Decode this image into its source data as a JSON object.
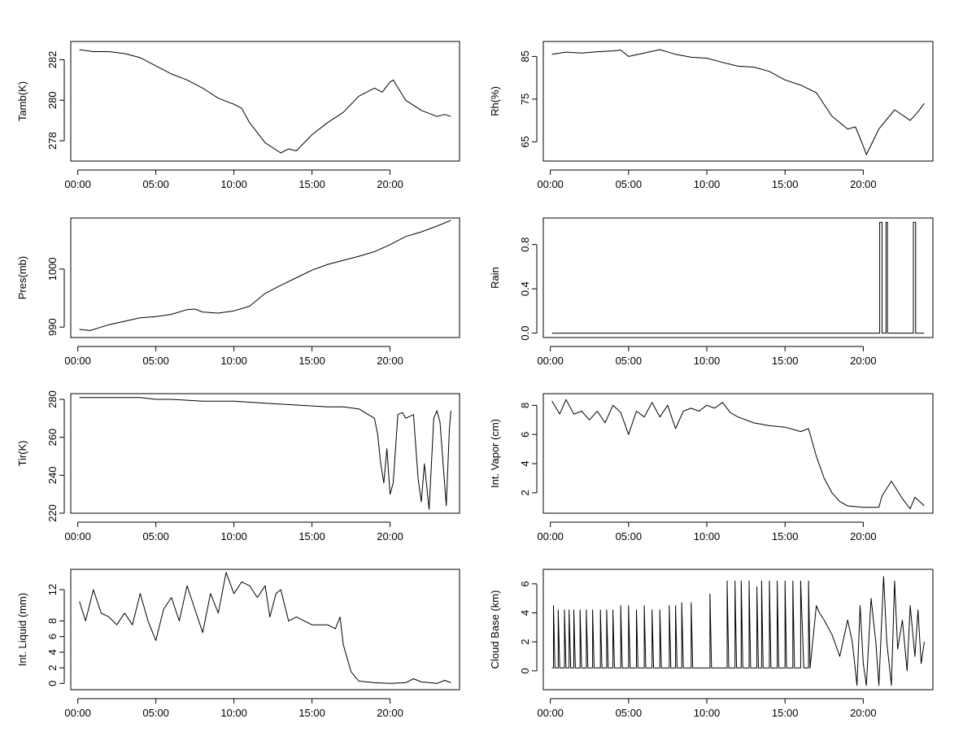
{
  "chart_data": [
    {
      "type": "line",
      "ylabel": "Tamb(K)",
      "x_ticks": [
        "00:00",
        "05:00",
        "10:00",
        "15:00",
        "20:00"
      ],
      "xlim": [
        -0.45,
        24.45
      ],
      "ylim": [
        277.0,
        282.9
      ],
      "y_ticks": [
        278,
        280,
        282
      ],
      "series": [
        {
          "x": [
            0.1,
            1,
            2,
            3,
            4,
            5,
            6,
            7,
            8,
            9,
            10,
            10.5,
            11,
            12,
            13,
            13.5,
            14,
            15,
            16,
            17,
            18,
            19,
            19.5,
            20,
            20.2,
            21,
            22,
            23,
            23.5,
            23.9
          ],
          "y": [
            282.5,
            282.4,
            282.4,
            282.3,
            282.1,
            281.7,
            281.3,
            281.0,
            280.6,
            280.1,
            279.8,
            279.6,
            278.9,
            277.9,
            277.4,
            277.6,
            277.5,
            278.3,
            278.9,
            279.4,
            280.2,
            280.6,
            280.4,
            280.9,
            281.0,
            280.0,
            279.5,
            279.2,
            279.3,
            279.2
          ]
        }
      ]
    },
    {
      "type": "line",
      "ylabel": "Rh(%)",
      "x_ticks": [
        "00:00",
        "05:00",
        "10:00",
        "15:00",
        "20:00"
      ],
      "xlim": [
        -0.45,
        24.45
      ],
      "ylim": [
        60.5,
        88.5
      ],
      "y_ticks": [
        65,
        75,
        85
      ],
      "series": [
        {
          "x": [
            0.1,
            1,
            2,
            3,
            4,
            4.5,
            5,
            6,
            7,
            8,
            9,
            10,
            11,
            12,
            13,
            14,
            15,
            16,
            17,
            18,
            19,
            19.5,
            20,
            20.2,
            21,
            22,
            23,
            23.5,
            23.9
          ],
          "y": [
            85.5,
            86.0,
            85.8,
            86.1,
            86.3,
            86.5,
            85.0,
            85.8,
            86.6,
            85.5,
            84.8,
            84.6,
            83.6,
            82.7,
            82.5,
            81.5,
            79.5,
            78.3,
            76.5,
            71.0,
            68.0,
            68.5,
            64.0,
            62.0,
            68.0,
            72.5,
            70.0,
            72.0,
            74.0
          ]
        }
      ]
    },
    {
      "type": "line",
      "ylabel": "Pres(mb)",
      "x_ticks": [
        "00:00",
        "05:00",
        "10:00",
        "15:00",
        "20:00"
      ],
      "xlim": [
        -0.45,
        24.45
      ],
      "ylim": [
        988.2,
        1008.8
      ],
      "y_ticks": [
        990,
        1000
      ],
      "y_tick_labels": [
        "990",
        "1000"
      ],
      "series": [
        {
          "x": [
            0.1,
            0.8,
            1.5,
            2,
            3,
            4,
            5,
            6,
            7,
            7.5,
            8,
            9,
            10,
            11,
            12,
            13,
            14,
            15,
            16,
            17,
            18,
            19,
            20,
            21,
            22,
            23,
            23.9
          ],
          "y": [
            989.6,
            989.4,
            990.0,
            990.4,
            991.0,
            991.6,
            991.8,
            992.2,
            993.0,
            993.1,
            992.6,
            992.4,
            992.8,
            993.6,
            995.8,
            997.2,
            998.5,
            999.8,
            1000.8,
            1001.5,
            1002.2,
            1003.0,
            1004.2,
            1005.6,
            1006.4,
            1007.4,
            1008.4
          ]
        }
      ]
    },
    {
      "type": "line",
      "ylabel": "Rain",
      "x_ticks": [
        "00:00",
        "05:00",
        "10:00",
        "15:00",
        "20:00"
      ],
      "xlim": [
        -0.45,
        24.45
      ],
      "ylim": [
        -0.04,
        1.04
      ],
      "y_ticks": [
        0.0,
        0.4,
        0.8
      ],
      "y_tick_labels": [
        "0.0",
        "0.4",
        "0.8"
      ],
      "series": [
        {
          "x": [
            0.1,
            21.05,
            21.05,
            21.2,
            21.2,
            21.45,
            21.45,
            21.55,
            21.55,
            23.2,
            23.2,
            23.35,
            23.35,
            23.9
          ],
          "y": [
            0,
            0,
            1,
            1,
            0,
            0,
            1,
            1,
            0,
            0,
            1,
            1,
            0,
            0
          ]
        }
      ]
    },
    {
      "type": "line",
      "ylabel": "Tir(K)",
      "x_ticks": [
        "00:00",
        "05:00",
        "10:00",
        "15:00",
        "20:00"
      ],
      "xlim": [
        -0.45,
        24.45
      ],
      "ylim": [
        220,
        283
      ],
      "y_ticks": [
        220,
        240,
        260,
        280
      ],
      "series": [
        {
          "x": [
            0.1,
            2,
            4,
            5,
            6,
            8,
            10,
            12,
            14,
            16,
            17,
            18,
            18.6,
            19,
            19.2,
            19.4,
            19.6,
            19.8,
            20,
            20.2,
            20.5,
            20.8,
            21,
            21.5,
            21.8,
            22,
            22.2,
            22.5,
            22.8,
            23,
            23.2,
            23.4,
            23.6,
            23.8,
            23.9
          ],
          "y": [
            281,
            281,
            281,
            280,
            280,
            279,
            279,
            278,
            277,
            276,
            276,
            275,
            272,
            270,
            262,
            246,
            236,
            254,
            230,
            236,
            272,
            273,
            270,
            272,
            238,
            226,
            246,
            222,
            270,
            274,
            268,
            246,
            224,
            264,
            274
          ]
        }
      ]
    },
    {
      "type": "line",
      "ylabel": "Int. Vapor (cm)",
      "x_ticks": [
        "00:00",
        "05:00",
        "10:00",
        "15:00",
        "20:00"
      ],
      "xlim": [
        -0.45,
        24.45
      ],
      "ylim": [
        0.6,
        8.8
      ],
      "y_ticks": [
        2,
        4,
        6,
        8
      ],
      "series": [
        {
          "x": [
            0.1,
            0.6,
            1,
            1.5,
            2,
            2.5,
            3,
            3.5,
            4,
            4.5,
            5,
            5.5,
            6,
            6.5,
            7,
            7.5,
            8,
            8.5,
            9,
            9.5,
            10,
            10.5,
            11,
            11.5,
            12,
            13,
            14,
            15,
            16,
            16.5,
            17,
            17.5,
            18,
            18.5,
            19,
            20,
            21,
            21.2,
            21.8,
            22.5,
            23,
            23.3,
            23.9
          ],
          "y": [
            8.3,
            7.4,
            8.4,
            7.4,
            7.6,
            7.0,
            7.6,
            6.8,
            8.0,
            7.5,
            6.0,
            7.6,
            7.2,
            8.2,
            7.2,
            8.0,
            6.4,
            7.6,
            7.8,
            7.6,
            8.0,
            7.8,
            8.2,
            7.5,
            7.2,
            6.8,
            6.6,
            6.5,
            6.2,
            6.4,
            4.5,
            3.0,
            2.0,
            1.4,
            1.1,
            1.0,
            1.0,
            1.8,
            2.8,
            1.6,
            0.9,
            1.7,
            1.1
          ]
        }
      ]
    },
    {
      "type": "line",
      "ylabel": "Int. Liquid (mm)",
      "x_ticks": [
        "00:00",
        "05:00",
        "10:00",
        "15:00",
        "20:00"
      ],
      "xlim": [
        -0.45,
        24.45
      ],
      "ylim": [
        -0.8,
        14.6
      ],
      "y_ticks": [
        0,
        2,
        4,
        6,
        8,
        12
      ],
      "series": [
        {
          "x": [
            0.1,
            0.5,
            1,
            1.5,
            2,
            2.5,
            3,
            3.5,
            4,
            4.5,
            5,
            5.5,
            6,
            6.5,
            7,
            7.5,
            8,
            8.5,
            9,
            9.5,
            10,
            10.5,
            11,
            11.5,
            12,
            12.3,
            12.7,
            13,
            13.5,
            14,
            15,
            16,
            16.5,
            16.8,
            17,
            17.5,
            18,
            19,
            20,
            21,
            21.5,
            22,
            23,
            23.5,
            23.9
          ],
          "y": [
            10.5,
            8.0,
            12.0,
            9.0,
            8.5,
            7.5,
            9.0,
            7.5,
            11.5,
            8.0,
            5.5,
            9.5,
            11.0,
            8.0,
            12.5,
            9.5,
            6.5,
            11.5,
            9.0,
            14.2,
            11.5,
            13.0,
            12.5,
            11.0,
            12.5,
            8.5,
            11.5,
            12.0,
            8.0,
            8.5,
            7.5,
            7.5,
            7.0,
            8.5,
            5.0,
            1.5,
            0.3,
            0.1,
            0.0,
            0.1,
            0.6,
            0.2,
            0.0,
            0.4,
            0.1
          ]
        }
      ]
    },
    {
      "type": "line",
      "ylabel": "Cloud Base (km)",
      "x_ticks": [
        "00:00",
        "05:00",
        "10:00",
        "15:00",
        "20:00"
      ],
      "xlim": [
        -0.45,
        24.45
      ],
      "ylim": [
        -1.3,
        7.0
      ],
      "y_ticks": [
        0,
        2,
        4,
        6
      ],
      "series": [
        {
          "x": [
            0.1,
            0.2,
            0.2,
            0.3,
            0.5,
            0.5,
            0.6,
            0.9,
            0.9,
            1.0,
            1.2,
            1.2,
            1.3,
            1.5,
            1.5,
            1.6,
            1.9,
            1.9,
            2.0,
            2.3,
            2.3,
            2.4,
            2.7,
            2.7,
            2.8,
            3.2,
            3.2,
            3.3,
            3.6,
            3.6,
            3.7,
            4.0,
            4.0,
            4.1,
            4.5,
            4.5,
            4.6,
            5.0,
            5.0,
            5.1,
            5.5,
            5.5,
            5.6,
            6.0,
            6.0,
            6.1,
            6.5,
            6.5,
            6.6,
            7.0,
            7.0,
            7.1,
            7.6,
            7.6,
            7.7,
            8.0,
            8.0,
            8.1,
            8.4,
            8.4,
            8.5,
            9.0,
            9.0,
            9.1,
            10.2,
            10.2,
            10.3,
            11.3,
            11.3,
            11.4,
            11.8,
            11.8,
            11.9,
            12.2,
            12.2,
            12.3,
            12.7,
            12.7,
            12.8,
            13.2,
            13.2,
            13.3,
            13.5,
            13.5,
            13.6,
            14.0,
            14.0,
            14.1,
            14.5,
            14.5,
            14.6,
            15.0,
            15.0,
            15.1,
            15.5,
            15.5,
            15.6,
            16.0,
            16.0,
            16.2,
            16.5,
            16.5,
            16.6,
            17.0,
            17.2,
            17.5,
            18.0,
            18.5,
            19.0,
            19.3,
            19.6,
            19.8,
            20.0,
            20.2,
            20.5,
            20.8,
            21.0,
            21.3,
            21.5,
            21.8,
            22.0,
            22.2,
            22.5,
            22.8,
            23.0,
            23.3,
            23.5,
            23.7,
            23.9
          ],
          "y": [
            0.2,
            0.2,
            4.5,
            0.2,
            0.2,
            4.2,
            0.2,
            0.2,
            4.2,
            0.2,
            0.2,
            4.2,
            0.2,
            0.2,
            4.2,
            0.2,
            0.2,
            4.2,
            0.2,
            0.2,
            4.2,
            0.2,
            0.2,
            4.2,
            0.2,
            0.2,
            4.2,
            0.2,
            0.2,
            4.2,
            0.2,
            0.2,
            4.2,
            0.2,
            0.2,
            4.5,
            0.2,
            0.2,
            4.5,
            0.2,
            0.2,
            4.2,
            0.2,
            0.2,
            4.5,
            0.2,
            0.2,
            4.2,
            0.2,
            0.2,
            4.2,
            0.2,
            0.2,
            4.5,
            0.2,
            0.2,
            4.5,
            0.2,
            0.2,
            4.7,
            0.2,
            0.2,
            4.7,
            0.2,
            0.2,
            5.3,
            0.2,
            0.2,
            6.2,
            0.2,
            0.2,
            6.2,
            0.2,
            0.2,
            6.2,
            0.2,
            0.2,
            6.2,
            0.2,
            0.2,
            5.8,
            0.2,
            0.2,
            6.2,
            0.2,
            0.2,
            6.2,
            0.2,
            0.2,
            6.2,
            0.2,
            0.2,
            6.2,
            0.2,
            0.2,
            6.2,
            0.2,
            0.2,
            6.2,
            0.2,
            0.2,
            6.2,
            0.2,
            4.5,
            4.0,
            3.5,
            2.5,
            1.0,
            3.5,
            2.0,
            -1.0,
            4.5,
            0.5,
            -1.0,
            5.0,
            2.0,
            -1.0,
            6.5,
            2.0,
            -1.0,
            6.2,
            1.5,
            3.5,
            0.0,
            4.5,
            1.0,
            4.2,
            0.5,
            2.0
          ]
        }
      ]
    }
  ]
}
